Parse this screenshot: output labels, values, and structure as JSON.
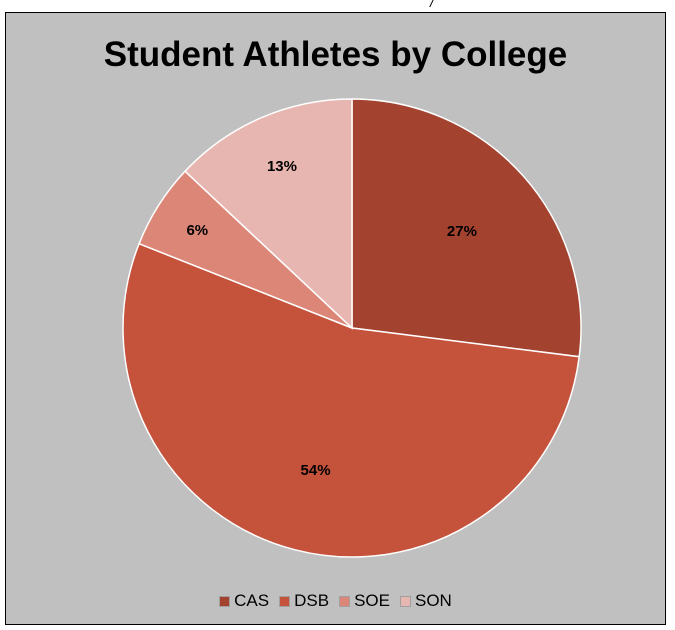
{
  "chart_data": {
    "type": "pie",
    "title": "Student Athletes by College",
    "categories": [
      "CAS",
      "DSB",
      "SOE",
      "SON"
    ],
    "values": [
      27,
      54,
      6,
      13
    ],
    "labels": [
      "27%",
      "54%",
      "6%",
      "13%"
    ],
    "colors": [
      "#a3432f",
      "#c5533b",
      "#dc8678",
      "#e8b6b1"
    ],
    "legend_position": "bottom"
  },
  "style": {
    "background": "#c0c0c0"
  },
  "top_mark": "/"
}
